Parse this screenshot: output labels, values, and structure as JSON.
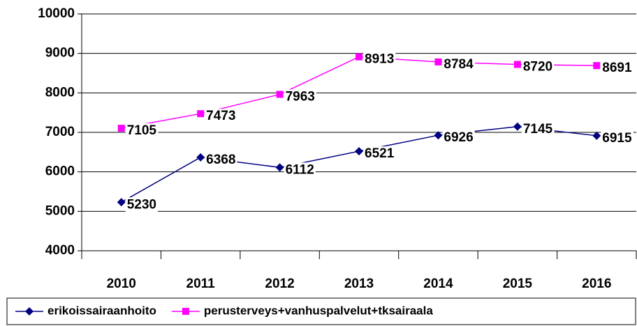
{
  "chart_data": {
    "type": "line",
    "categories": [
      "2010",
      "2011",
      "2012",
      "2013",
      "2014",
      "2015",
      "2016"
    ],
    "series": [
      {
        "name": "erikoissairaanhoito",
        "color": "#000080",
        "marker": "diamond",
        "values": [
          5230,
          6368,
          6112,
          6521,
          6926,
          7145,
          6915
        ]
      },
      {
        "name": "perusterveys+vanhuspalvelut+tksairaala",
        "color": "#ff00ff",
        "marker": "square",
        "values": [
          7105,
          7473,
          7963,
          8913,
          8784,
          8720,
          8691
        ]
      }
    ],
    "ylim": [
      4000,
      10000
    ],
    "yticks": [
      4000,
      5000,
      6000,
      7000,
      8000,
      9000,
      10000
    ],
    "grid": true,
    "legend": "bottom"
  }
}
